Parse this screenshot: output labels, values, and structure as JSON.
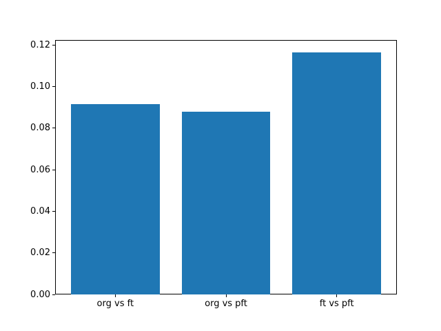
{
  "figure": {
    "background_color": "#ffffff",
    "title": ""
  },
  "chart_data": {
    "type": "bar",
    "categories": [
      "org vs ft",
      "org vs pft",
      "ft vs pft"
    ],
    "values": [
      0.0915,
      0.088,
      0.1165
    ],
    "title": "",
    "xlabel": "",
    "ylabel": "",
    "ylim": [
      0,
      0.1224
    ],
    "yticks": [
      0,
      0.02,
      0.04,
      0.06,
      0.08,
      0.1,
      0.12
    ],
    "ytick_label_decimals": 2,
    "xlim": [
      -0.543,
      2.543
    ],
    "bar_centers": [
      0,
      1,
      2
    ],
    "bar_width": 0.8,
    "bar_color": "#1f77b4",
    "axis_color": "#000000",
    "grid": false,
    "legend_position": "none"
  }
}
